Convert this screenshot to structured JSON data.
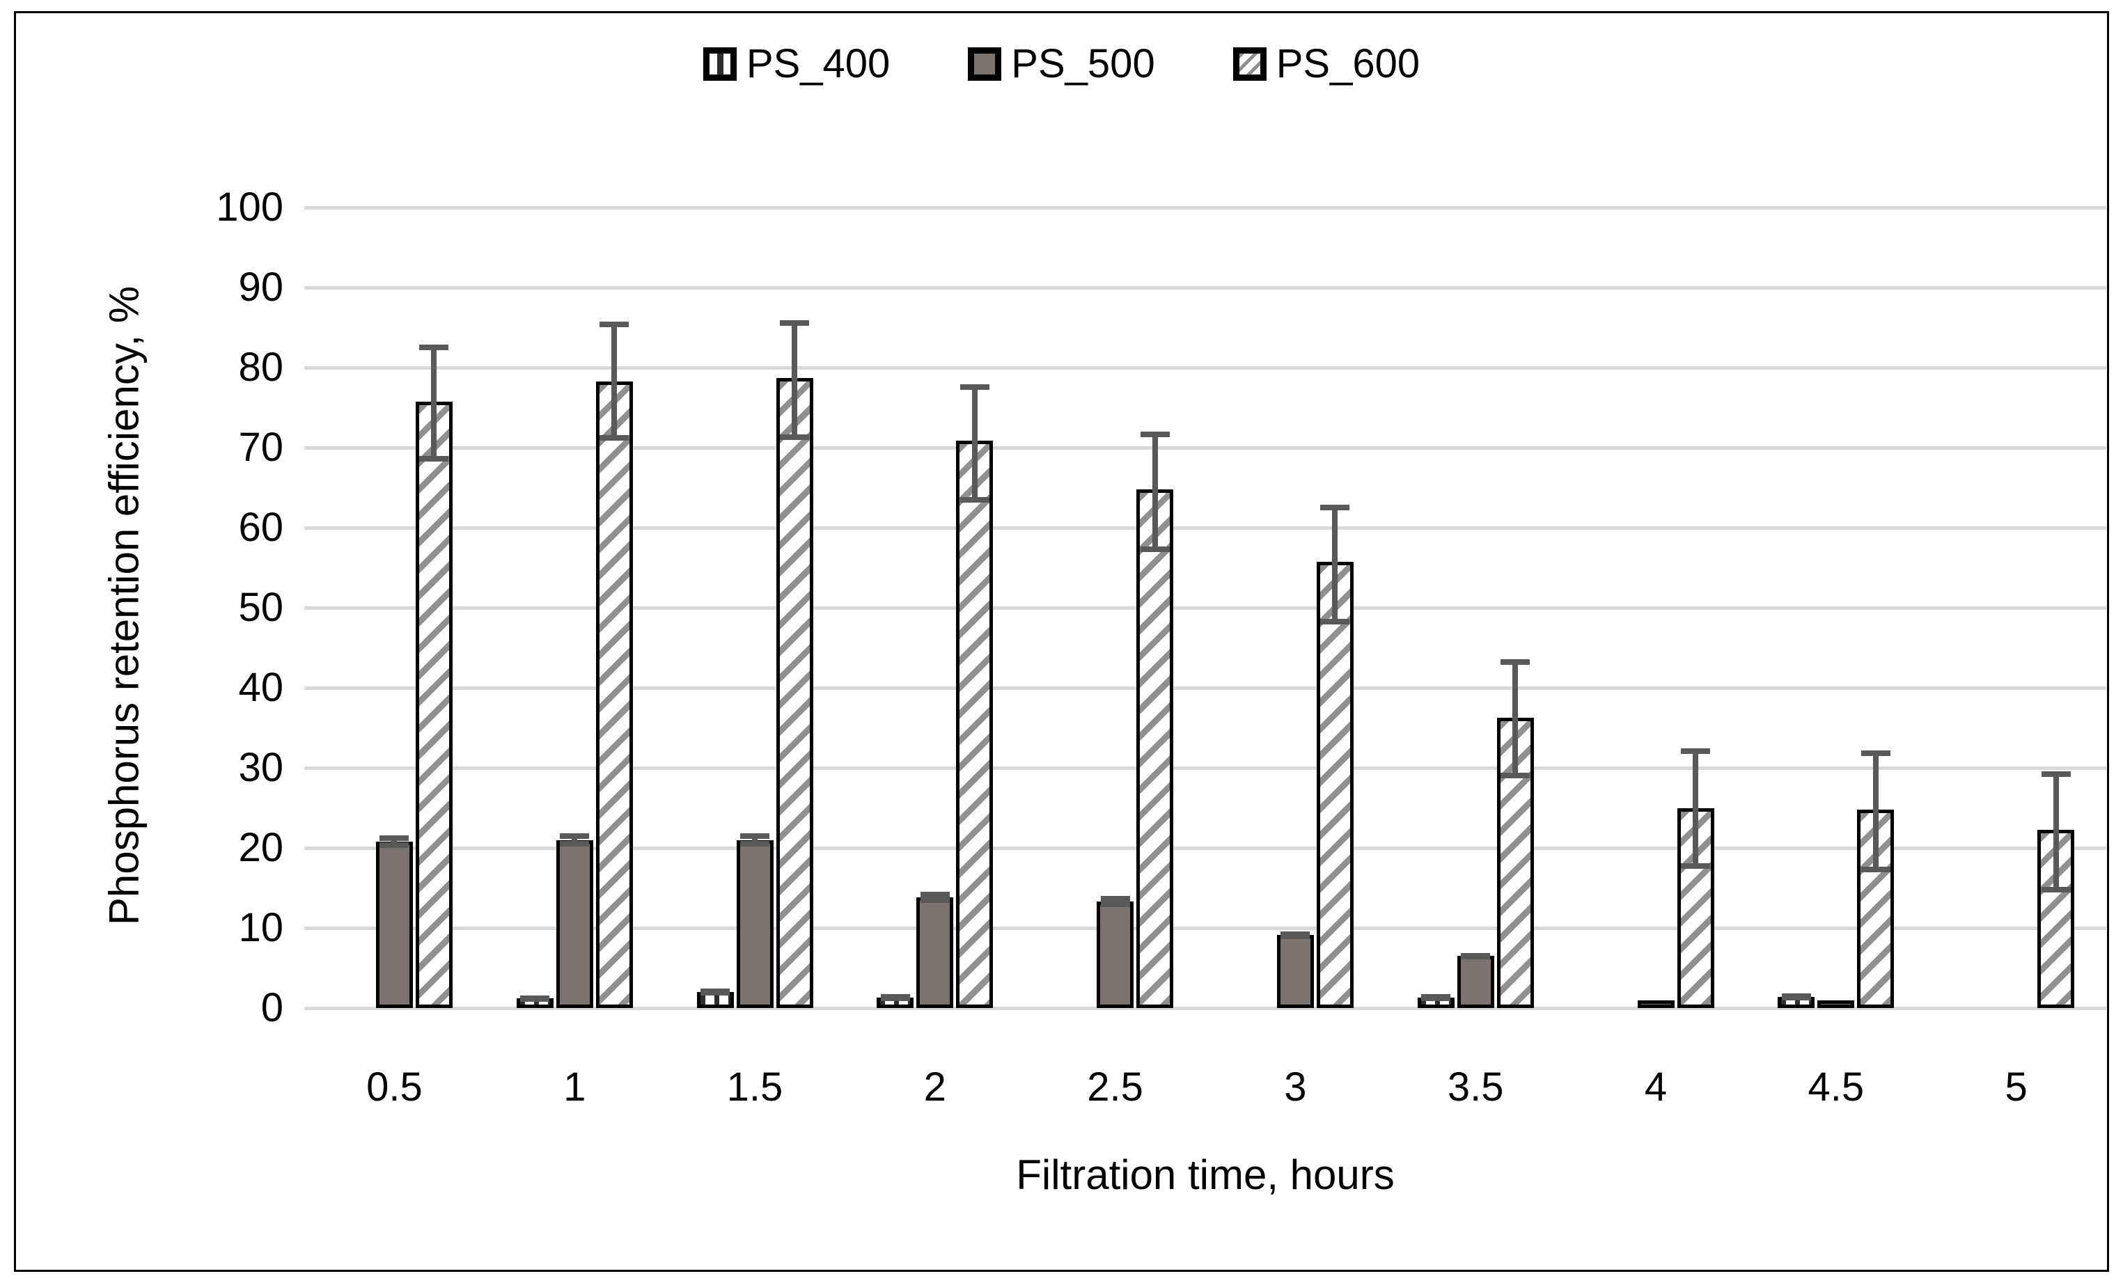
{
  "legend": {
    "items": [
      {
        "label": "PS_400",
        "swatch": "vertical-stripe-pattern"
      },
      {
        "label": "PS_500",
        "swatch": "solid-gray"
      },
      {
        "label": "PS_600",
        "swatch": "diagonal-hatch-pattern"
      }
    ]
  },
  "chart_data": {
    "type": "bar",
    "title": "",
    "xlabel": "Filtration time, hours",
    "ylabel": "Phosphorus retention efficiency, %",
    "categories": [
      "0.5",
      "1",
      "1.5",
      "2",
      "2.5",
      "3",
      "3.5",
      "4",
      "4.5",
      "5"
    ],
    "ylim": [
      0,
      100
    ],
    "ytick_step": 10,
    "grid": true,
    "legend_position": "top-center",
    "series": [
      {
        "name": "PS_400",
        "values": [
          0,
          1.2,
          2.0,
          1.3,
          0,
          0,
          1.3,
          0,
          1.4,
          0
        ],
        "err": [
          0,
          0.4,
          0.4,
          0.4,
          0,
          0,
          0.4,
          0,
          0.4,
          0
        ]
      },
      {
        "name": "PS_500",
        "values": [
          20.8,
          21.0,
          21.0,
          13.8,
          13.3,
          9.1,
          6.5,
          1.0,
          1.0,
          0
        ],
        "err": [
          0.8,
          0.8,
          0.8,
          0.7,
          0.7,
          0.5,
          0.4,
          0,
          0,
          0
        ]
      },
      {
        "name": "PS_600",
        "values": [
          75.7,
          78.3,
          78.7,
          70.9,
          64.8,
          55.7,
          36.3,
          25.0,
          24.8,
          22.3
        ],
        "err_low": [
          68.3,
          70.9,
          71.0,
          63.1,
          57.0,
          47.9,
          28.7,
          17.4,
          17.0,
          14.4
        ],
        "err_high": [
          82.9,
          85.7,
          85.9,
          77.9,
          72.0,
          62.9,
          43.6,
          32.4,
          32.2,
          29.6
        ]
      }
    ],
    "colors": {
      "ps500_fill": "#7a7370",
      "error_bar": "#595959",
      "gridline": "#d9d9d9",
      "hatch_stripe": "#909090",
      "bar_border": "#000000"
    }
  }
}
